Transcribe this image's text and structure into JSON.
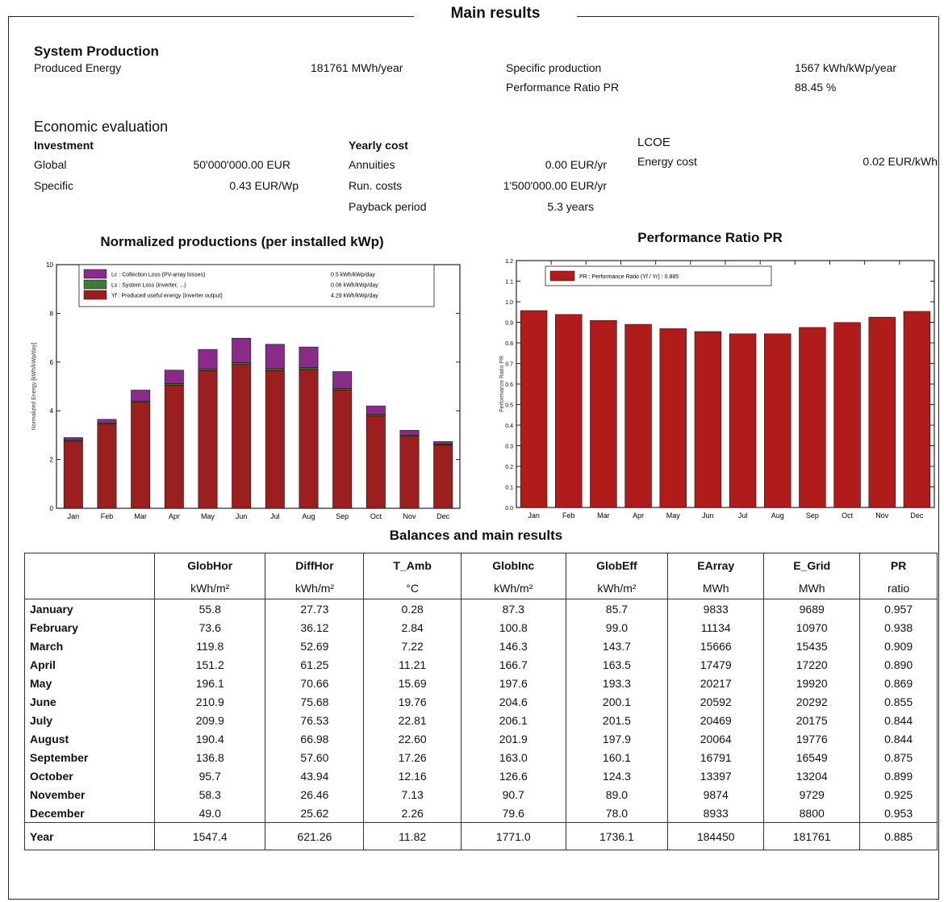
{
  "title": "Main results",
  "system_production": {
    "heading": "System Production",
    "produced_energy_label": "Produced Energy",
    "produced_energy_value": "181761 MWh/year",
    "specific_production_label": "Specific production",
    "specific_production_value": "1567 kWh/kWp/year",
    "pr_label": "Performance Ratio PR",
    "pr_value": "88.45 %"
  },
  "economic": {
    "heading": "Economic evaluation",
    "investment_label": "Investment",
    "global_label": "Global",
    "global_value": "50'000'000.00 EUR",
    "specific_label": "Specific",
    "specific_value": "0.43 EUR/Wp",
    "yearly_cost_label": "Yearly cost",
    "annuities_label": "Annuities",
    "annuities_value": "0.00 EUR/yr",
    "run_costs_label": "Run. costs",
    "run_costs_value": "1'500'000.00 EUR/yr",
    "payback_label": "Payback period",
    "payback_value": "5.3 years",
    "lcoe_label": "LCOE",
    "energy_cost_label": "Energy cost",
    "energy_cost_value": "0.02 EUR/kWh"
  },
  "chart_data": [
    {
      "type": "bar",
      "title": "Normalized productions (per installed kWp)",
      "ylabel": "Normalized Energy [kWh/kWp/day]",
      "xlabel": "",
      "categories": [
        "Jan",
        "Feb",
        "Mar",
        "Apr",
        "May",
        "Jun",
        "Jul",
        "Aug",
        "Sep",
        "Oct",
        "Nov",
        "Dec"
      ],
      "ylim": [
        0,
        10
      ],
      "yticks": [
        "0",
        "2",
        "4",
        "6",
        "8",
        "10"
      ],
      "stacked": true,
      "legend_position": "top-left",
      "series": [
        {
          "name": "Yf : Produced useful energy (inverter output)",
          "legend_value": "4.29 kWh/kWp/day",
          "color": "#9c1f1f",
          "values": [
            2.75,
            3.45,
            4.35,
            5.05,
            5.65,
            5.9,
            5.65,
            5.7,
            4.85,
            3.8,
            2.95,
            2.6
          ]
        },
        {
          "name": "Ls : System Loss (inverter, ...)",
          "legend_value": "0.06 kWh/kWp/day",
          "color": "#3a7a3a",
          "values": [
            0.05,
            0.05,
            0.05,
            0.07,
            0.07,
            0.08,
            0.08,
            0.07,
            0.06,
            0.05,
            0.05,
            0.04
          ]
        },
        {
          "name": "Lc : Collection Loss (PV-array losses)",
          "legend_value": "0.5 kWh/kWp/day",
          "color": "#8a2b8a",
          "values": [
            0.1,
            0.15,
            0.45,
            0.55,
            0.8,
            1.0,
            1.0,
            0.85,
            0.7,
            0.35,
            0.2,
            0.1
          ]
        }
      ]
    },
    {
      "type": "bar",
      "title": "Performance Ratio PR",
      "ylabel": "Performance Ratio PR",
      "xlabel": "",
      "categories": [
        "Jan",
        "Feb",
        "Mar",
        "Apr",
        "May",
        "Jun",
        "Jul",
        "Aug",
        "Sep",
        "Oct",
        "Nov",
        "Dec"
      ],
      "ylim": [
        0,
        1.2
      ],
      "yticks": [
        "0.0",
        "0.1",
        "0.2",
        "0.3",
        "0.4",
        "0.5",
        "0.6",
        "0.7",
        "0.8",
        "0.9",
        "1.0",
        "1.1",
        "1.2"
      ],
      "legend_position": "top-left",
      "series": [
        {
          "name": "PR : Performance Ratio (Yf / Yr) :  0.885",
          "color": "#b01c1c",
          "values": [
            0.957,
            0.938,
            0.909,
            0.89,
            0.869,
            0.855,
            0.844,
            0.844,
            0.875,
            0.899,
            0.925,
            0.953
          ]
        }
      ]
    }
  ],
  "balances": {
    "title": "Balances and main results",
    "columns": [
      "GlobHor",
      "DiffHor",
      "T_Amb",
      "GlobInc",
      "GlobEff",
      "EArray",
      "E_Grid",
      "PR"
    ],
    "units": [
      "kWh/m²",
      "kWh/m²",
      "°C",
      "kWh/m²",
      "kWh/m²",
      "MWh",
      "MWh",
      "ratio"
    ],
    "rows": [
      {
        "label": "January",
        "values": [
          "55.8",
          "27.73",
          "0.28",
          "87.3",
          "85.7",
          "9833",
          "9689",
          "0.957"
        ]
      },
      {
        "label": "February",
        "values": [
          "73.6",
          "36.12",
          "2.84",
          "100.8",
          "99.0",
          "11134",
          "10970",
          "0.938"
        ]
      },
      {
        "label": "March",
        "values": [
          "119.8",
          "52.69",
          "7.22",
          "146.3",
          "143.7",
          "15666",
          "15435",
          "0.909"
        ]
      },
      {
        "label": "April",
        "values": [
          "151.2",
          "61.25",
          "11.21",
          "166.7",
          "163.5",
          "17479",
          "17220",
          "0.890"
        ]
      },
      {
        "label": "May",
        "values": [
          "196.1",
          "70.66",
          "15.69",
          "197.6",
          "193.3",
          "20217",
          "19920",
          "0.869"
        ]
      },
      {
        "label": "June",
        "values": [
          "210.9",
          "75.68",
          "19.76",
          "204.6",
          "200.1",
          "20592",
          "20292",
          "0.855"
        ]
      },
      {
        "label": "July",
        "values": [
          "209.9",
          "76.53",
          "22.81",
          "206.1",
          "201.5",
          "20469",
          "20175",
          "0.844"
        ]
      },
      {
        "label": "August",
        "values": [
          "190.4",
          "66.98",
          "22.60",
          "201.9",
          "197.9",
          "20064",
          "19776",
          "0.844"
        ]
      },
      {
        "label": "September",
        "values": [
          "136.8",
          "57.60",
          "17.26",
          "163.0",
          "160.1",
          "16791",
          "16549",
          "0.875"
        ]
      },
      {
        "label": "October",
        "values": [
          "95.7",
          "43.94",
          "12.16",
          "126.6",
          "124.3",
          "13397",
          "13204",
          "0.899"
        ]
      },
      {
        "label": "November",
        "values": [
          "58.3",
          "26.46",
          "7.13",
          "90.7",
          "89.0",
          "9874",
          "9729",
          "0.925"
        ]
      },
      {
        "label": "December",
        "values": [
          "49.0",
          "25.62",
          "2.26",
          "79.6",
          "78.0",
          "8933",
          "8800",
          "0.953"
        ]
      }
    ],
    "total": {
      "label": "Year",
      "values": [
        "1547.4",
        "621.26",
        "11.82",
        "1771.0",
        "1736.1",
        "184450",
        "181761",
        "0.885"
      ]
    }
  }
}
